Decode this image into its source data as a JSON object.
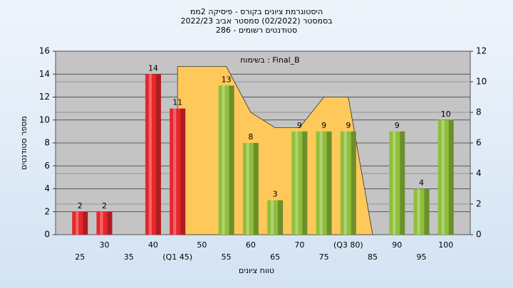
{
  "chart_data": {
    "type": "bar",
    "title": [
      "היסטוגרמת ציונים בקורס - פיסיקה 2ממ",
      "בסמסטר (02/2022) סמסטר אביב 2022/23",
      "סטודנטים רשומים - 286"
    ],
    "x_label": "טווח ציונים",
    "y_label": "מספר סטודנטים",
    "categories": [
      "25",
      "30",
      "35",
      "40",
      "(Q1 45)",
      "50",
      "55",
      "60",
      "65",
      "70",
      "75",
      "(Q3 80)",
      "85",
      "90",
      "95",
      "100"
    ],
    "series": [
      {
        "name": "מספר סטודנטים",
        "type": "bar",
        "values": [
          2,
          2,
          null,
          14,
          11,
          null,
          13,
          8,
          3,
          9,
          9,
          9,
          null,
          9,
          4,
          10
        ],
        "colors": [
          "#e8262b",
          "#e8262b",
          null,
          "#e8262b",
          "#e8262b",
          null,
          "#8fbf3a",
          "#8fbf3a",
          "#8fbf3a",
          "#8fbf3a",
          "#8fbf3a",
          "#8fbf3a",
          null,
          "#8fbf3a",
          "#8fbf3a",
          "#8fbf3a"
        ]
      },
      {
        "name": "בשימוח : Final_B",
        "type": "area",
        "axis": "y2",
        "color": "#ffc85a",
        "values": [
          null,
          null,
          null,
          null,
          11,
          11,
          11,
          8,
          7,
          7,
          9,
          9,
          0,
          null,
          null,
          null
        ]
      }
    ],
    "ylim": [
      0,
      16
    ],
    "yticks": [
      0,
      2,
      4,
      6,
      8,
      10,
      12,
      14,
      16
    ],
    "y2lim": [
      0,
      12
    ],
    "y2ticks": [
      0,
      2,
      4,
      6,
      8,
      10,
      12
    ],
    "grid": true
  }
}
